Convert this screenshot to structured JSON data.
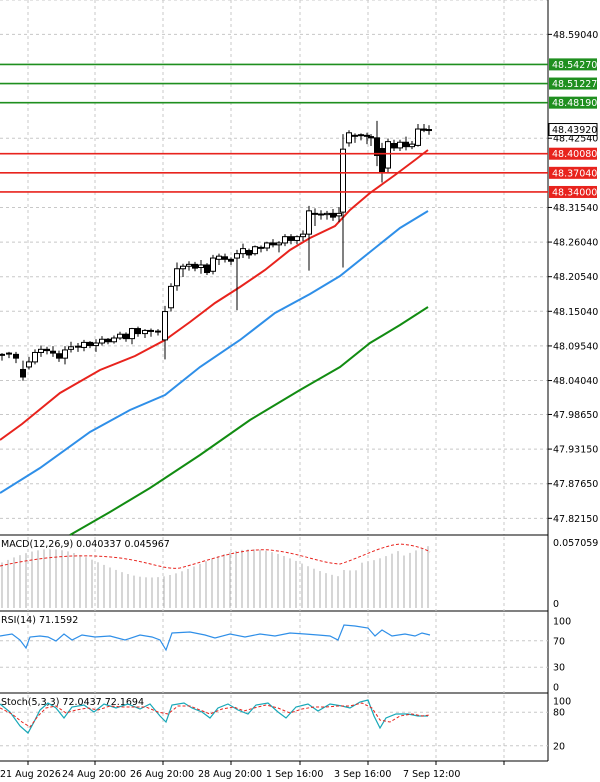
{
  "chart_data": {
    "type": "candlestick",
    "instrument_panel": {
      "y_ticks": [
        48.5904,
        48.4254,
        48.3154,
        48.2604,
        48.2054,
        48.1504,
        48.0954,
        48.0404,
        47.9865,
        47.9315,
        47.8765,
        47.8215
      ],
      "y_tick_labels": [
        "48.59040",
        "48.42540",
        "48.31540",
        "48.26040",
        "48.20540",
        "48.15040",
        "48.09540",
        "48.04040",
        "47.98650",
        "47.93150",
        "47.87650",
        "47.82150"
      ],
      "ylim": [
        47.795,
        48.645
      ],
      "current_price": {
        "value": 48.4392,
        "label": "48.43920"
      },
      "resistance_levels": [
        {
          "value": 48.5427,
          "label": "48.54270",
          "color": "#1f8f1f"
        },
        {
          "value": 48.51227,
          "label": "48.51227",
          "color": "#1f8f1f"
        },
        {
          "value": 48.4819,
          "label": "48.48190",
          "color": "#1f8f1f"
        }
      ],
      "support_levels": [
        {
          "value": 48.4008,
          "label": "48.40080",
          "color": "#e8231d"
        },
        {
          "value": 48.3704,
          "label": "48.37040",
          "color": "#e8231d"
        },
        {
          "value": 48.34,
          "label": "48.34000",
          "color": "#e8231d"
        }
      ],
      "ma_fast_color": "#e8231d",
      "ma_mid_color": "#2f8fe8",
      "ma_slow_color": "#128c12"
    },
    "x_tick_labels": [
      "21 Aug 2026",
      "24 Aug 20:00",
      "26 Aug 20:00",
      "28 Aug 20:00",
      "1 Sep 16:00",
      "3 Sep 16:00",
      "7 Sep 12:00"
    ],
    "macd": {
      "title": "MACD(12,26,9) 0.040337 0.045967",
      "y_tick_labels": [
        "0.057059",
        "0"
      ],
      "ylim": [
        0,
        0.057059
      ]
    },
    "rsi": {
      "title": "RSI(14) 71.1592",
      "y_ticks": [
        100,
        70,
        30,
        0
      ],
      "ylim": [
        0,
        100
      ]
    },
    "stoch": {
      "title": "Stoch(5,3,3) 72.0437 72.1694",
      "y_ticks": [
        100,
        80,
        20
      ],
      "ylim": [
        0,
        100
      ]
    }
  }
}
